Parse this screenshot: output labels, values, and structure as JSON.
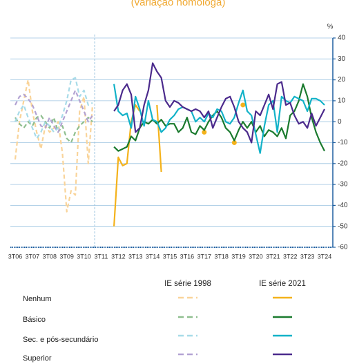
{
  "chart_data": {
    "type": "line",
    "title": "(variação homóloga)",
    "y_unit": "%",
    "categories": [
      "3T06",
      null,
      null,
      null,
      "3T07",
      null,
      null,
      null,
      "3T08",
      null,
      null,
      null,
      "3T09",
      null,
      null,
      null,
      "3T10",
      null,
      null,
      null,
      "3T11",
      null,
      null,
      null,
      "3T12",
      null,
      null,
      null,
      "3T13",
      null,
      null,
      null,
      "3T14",
      null,
      null,
      null,
      "3T15",
      null,
      null,
      null,
      "3T16",
      null,
      null,
      null,
      "3T17",
      null,
      null,
      null,
      "3T18",
      null,
      null,
      null,
      "3T19",
      null,
      null,
      null,
      "3T20",
      null,
      null,
      null,
      "3T21",
      null,
      null,
      null,
      "3T22",
      null,
      null,
      null,
      "3T23",
      null,
      null,
      null,
      "3T24"
    ],
    "ylim": [
      -60,
      40
    ],
    "yticks": [
      -60,
      -50,
      -40,
      -30,
      -20,
      -10,
      0,
      10,
      20,
      30,
      40
    ],
    "grid": true,
    "levels": [
      "Nenhum",
      "Básico",
      "Sec. e pós-secundário",
      "Superior"
    ],
    "editions": [
      {
        "name": "IE série 1998",
        "dashed": true,
        "series": [
          {
            "color": "#f9d49a",
            "values": [
              -18,
              0,
              10,
              20,
              5,
              -5,
              -13,
              -2,
              -5,
              -3,
              0,
              -15,
              -43,
              -33,
              -35,
              5,
              12,
              -20,
              8,
              null,
              null,
              null,
              null,
              null,
              null,
              null,
              null,
              null,
              null,
              null,
              null,
              null,
              null,
              null,
              null,
              null,
              null,
              null,
              null,
              null,
              null,
              null,
              null,
              null,
              null,
              null,
              null,
              null,
              null,
              null,
              null,
              null,
              null,
              null,
              null,
              null,
              null,
              null,
              null,
              null,
              null,
              null,
              null,
              null,
              null,
              null,
              null,
              null,
              null,
              null,
              null,
              null,
              null
            ]
          },
          {
            "color": "#8fbf8f",
            "values": [
              2,
              -1,
              -3,
              0,
              -2,
              2,
              3,
              0,
              -3,
              2,
              -5,
              -2,
              -8,
              -10,
              -5,
              -2,
              0,
              2,
              0,
              null,
              null,
              null,
              null,
              null,
              null,
              null,
              null,
              null,
              null,
              null,
              null,
              null,
              null,
              null,
              null,
              null,
              null,
              null,
              null,
              null,
              null,
              null,
              null,
              null,
              null,
              null,
              null,
              null,
              null,
              null,
              null,
              null,
              null,
              null,
              null,
              null,
              null,
              null,
              null,
              null,
              null,
              null,
              null,
              null,
              null,
              null,
              null,
              null,
              null,
              null,
              null,
              null,
              null
            ]
          },
          {
            "color": "#a7dbe8",
            "values": [
              0,
              5,
              8,
              2,
              -3,
              -8,
              -5,
              0,
              -2,
              -5,
              -3,
              3,
              10,
              20,
              21,
              12,
              15,
              8,
              9,
              null,
              null,
              null,
              null,
              null,
              null,
              null,
              null,
              null,
              null,
              null,
              null,
              null,
              null,
              null,
              null,
              null,
              null,
              null,
              null,
              null,
              null,
              null,
              null,
              null,
              null,
              null,
              null,
              null,
              null,
              null,
              null,
              null,
              null,
              null,
              null,
              null,
              null,
              null,
              null,
              null,
              null,
              null,
              null,
              null,
              null,
              null,
              null,
              null,
              null,
              null,
              null,
              null,
              null
            ]
          },
          {
            "color": "#b3a3d3",
            "values": [
              8,
              12,
              13,
              11,
              8,
              3,
              -2,
              -3,
              2,
              -2,
              -5,
              0,
              5,
              10,
              15,
              10,
              5,
              0,
              3,
              null,
              null,
              null,
              null,
              null,
              null,
              null,
              null,
              null,
              null,
              null,
              null,
              null,
              null,
              null,
              null,
              null,
              null,
              null,
              null,
              null,
              null,
              null,
              null,
              null,
              null,
              null,
              null,
              null,
              null,
              null,
              null,
              null,
              null,
              null,
              null,
              null,
              null,
              null,
              null,
              null,
              null,
              null,
              null,
              null,
              null,
              null,
              null,
              null,
              null,
              null,
              null,
              null,
              null
            ]
          }
        ]
      },
      {
        "name": "IE série 2021",
        "dashed": false,
        "series": [
          {
            "color": "#f4b21b",
            "values": [
              null,
              null,
              null,
              null,
              null,
              null,
              null,
              null,
              null,
              null,
              null,
              null,
              null,
              null,
              null,
              null,
              null,
              null,
              null,
              null,
              null,
              null,
              null,
              -50,
              -17,
              -21,
              -20,
              0,
              8,
              5,
              null,
              null,
              null,
              8,
              -24,
              null,
              null,
              null,
              null,
              null,
              null,
              null,
              null,
              null,
              -5,
              null,
              null,
              null,
              null,
              null,
              null,
              -10,
              null,
              8,
              null,
              null,
              null,
              null,
              null,
              null,
              null,
              null,
              null,
              null,
              null,
              null,
              null,
              null,
              null,
              null,
              null,
              null,
              null
            ]
          },
          {
            "color": "#1a7a2e",
            "values": [
              null,
              null,
              null,
              null,
              null,
              null,
              null,
              null,
              null,
              null,
              null,
              null,
              null,
              null,
              null,
              null,
              null,
              null,
              null,
              null,
              null,
              null,
              null,
              -12,
              -14,
              -13,
              -12,
              -7,
              -9,
              -3,
              0,
              -1,
              1,
              -1,
              1,
              -2,
              -1,
              -1,
              -5,
              -3,
              2,
              -5,
              -6,
              -2,
              -4,
              0,
              3,
              5,
              2,
              -3,
              -5,
              -9,
              -4,
              0,
              -3,
              0,
              -5,
              -2,
              -7,
              -4,
              -5,
              -7,
              -3,
              -8,
              3,
              5,
              10,
              18,
              12,
              2,
              -5,
              -10,
              -14
            ]
          },
          {
            "color": "#12b2c8",
            "values": [
              null,
              null,
              null,
              null,
              null,
              null,
              null,
              null,
              null,
              null,
              null,
              null,
              null,
              null,
              null,
              null,
              null,
              null,
              null,
              null,
              null,
              null,
              null,
              18,
              5,
              3,
              4,
              -3,
              12,
              6,
              -2,
              10,
              1,
              0,
              -5,
              -3,
              1,
              3,
              6,
              7,
              6,
              5,
              0,
              2,
              0,
              4,
              2,
              6,
              5,
              0,
              -1,
              2,
              9,
              15,
              5,
              3,
              -6,
              -15,
              -2,
              8,
              10,
              -5,
              12,
              10,
              9,
              12,
              11,
              10,
              5,
              11,
              11,
              10,
              8
            ]
          },
          {
            "color": "#4b2a8c",
            "values": [
              null,
              null,
              null,
              null,
              null,
              null,
              null,
              null,
              null,
              null,
              null,
              null,
              null,
              null,
              null,
              null,
              null,
              null,
              null,
              null,
              null,
              null,
              null,
              5,
              8,
              15,
              18,
              13,
              -5,
              -3,
              8,
              15,
              28,
              24,
              21,
              10,
              7,
              10,
              9,
              7,
              6,
              5,
              6,
              5,
              2,
              5,
              -3,
              2,
              7,
              11,
              12,
              7,
              0,
              -3,
              -5,
              -10,
              5,
              3,
              8,
              13,
              6,
              18,
              19,
              8,
              9,
              3,
              -1,
              0,
              -3,
              4,
              -2,
              2,
              6
            ]
          }
        ]
      }
    ]
  }
}
